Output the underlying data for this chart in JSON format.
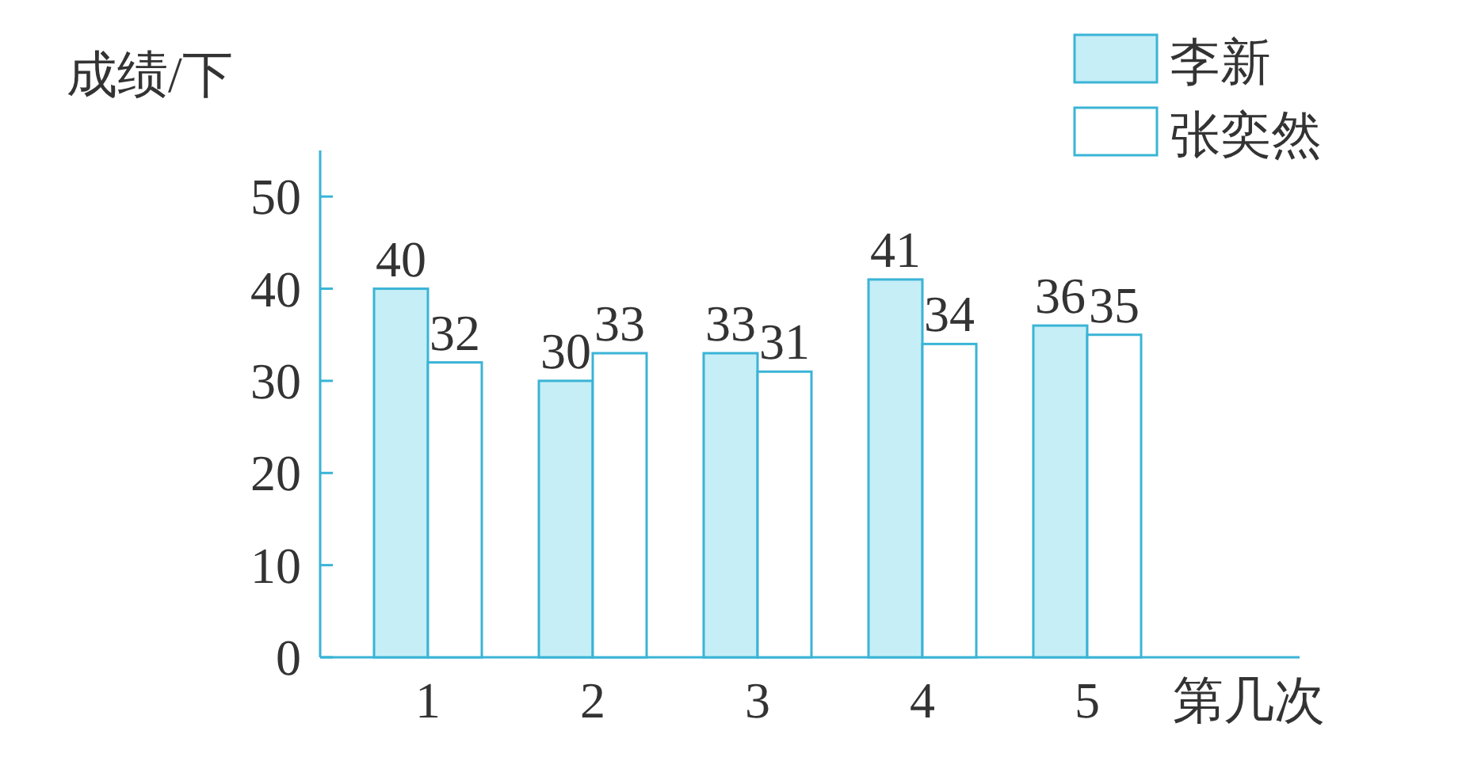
{
  "chart_data": {
    "type": "bar",
    "ylabel": "成绩/下",
    "xlabel": "第几次",
    "categories": [
      "1",
      "2",
      "3",
      "4",
      "5"
    ],
    "series": [
      {
        "name": "李新",
        "color": "#c6eef6",
        "values": [
          40,
          30,
          33,
          41,
          36
        ]
      },
      {
        "name": "张奕然",
        "color": "#ffffff",
        "values": [
          32,
          33,
          31,
          34,
          35
        ]
      }
    ],
    "ylim": [
      0,
      55
    ],
    "yticks": [
      0,
      10,
      20,
      30,
      40,
      50
    ],
    "data_labels": true,
    "legend": "top right",
    "grid": false
  }
}
